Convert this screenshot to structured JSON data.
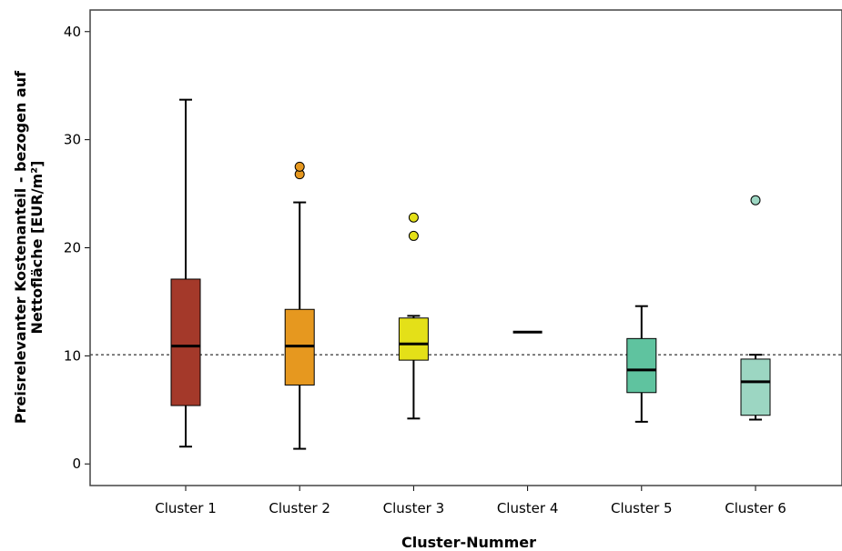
{
  "chart_data": {
    "type": "boxplot",
    "title": "",
    "xlabel": "Cluster-Nummer",
    "ylabel_lines": [
      "Preisrelevanter Kostenanteil - bezogen auf",
      "Nettofläche [EUR/m²]"
    ],
    "ylim": [
      -2,
      42
    ],
    "yticks": [
      0,
      10,
      20,
      30,
      40
    ],
    "grid": false,
    "reference_line": 10.1,
    "categories": [
      "Cluster 1",
      "Cluster 2",
      "Cluster 3",
      "Cluster 4",
      "Cluster 5",
      "Cluster 6"
    ],
    "boxes": [
      {
        "name": "Cluster 1",
        "color": "#a4392a",
        "min": 1.6,
        "q1": 5.4,
        "median": 10.9,
        "q3": 17.1,
        "max": 33.7,
        "outliers": []
      },
      {
        "name": "Cluster 2",
        "color": "#e6981f",
        "min": 1.4,
        "q1": 7.3,
        "median": 10.9,
        "q3": 14.3,
        "max": 24.2,
        "outliers": [
          26.8,
          27.5
        ]
      },
      {
        "name": "Cluster 3",
        "color": "#e4e018",
        "min": 4.2,
        "q1": 9.6,
        "median": 11.1,
        "q3": 13.5,
        "max": 13.7,
        "outliers": [
          21.1,
          22.8
        ]
      },
      {
        "name": "Cluster 4",
        "color": "#ffffff",
        "min": 12.2,
        "q1": 12.2,
        "median": 12.2,
        "q3": 12.2,
        "max": 12.2,
        "outliers": []
      },
      {
        "name": "Cluster 5",
        "color": "#5fc39f",
        "min": 3.9,
        "q1": 6.6,
        "median": 8.7,
        "q3": 11.6,
        "max": 14.6,
        "outliers": []
      },
      {
        "name": "Cluster 6",
        "color": "#9cd6c2",
        "min": 4.1,
        "q1": 4.5,
        "median": 7.6,
        "q3": 9.7,
        "max": 10.1,
        "outliers": [
          24.4
        ]
      }
    ]
  }
}
